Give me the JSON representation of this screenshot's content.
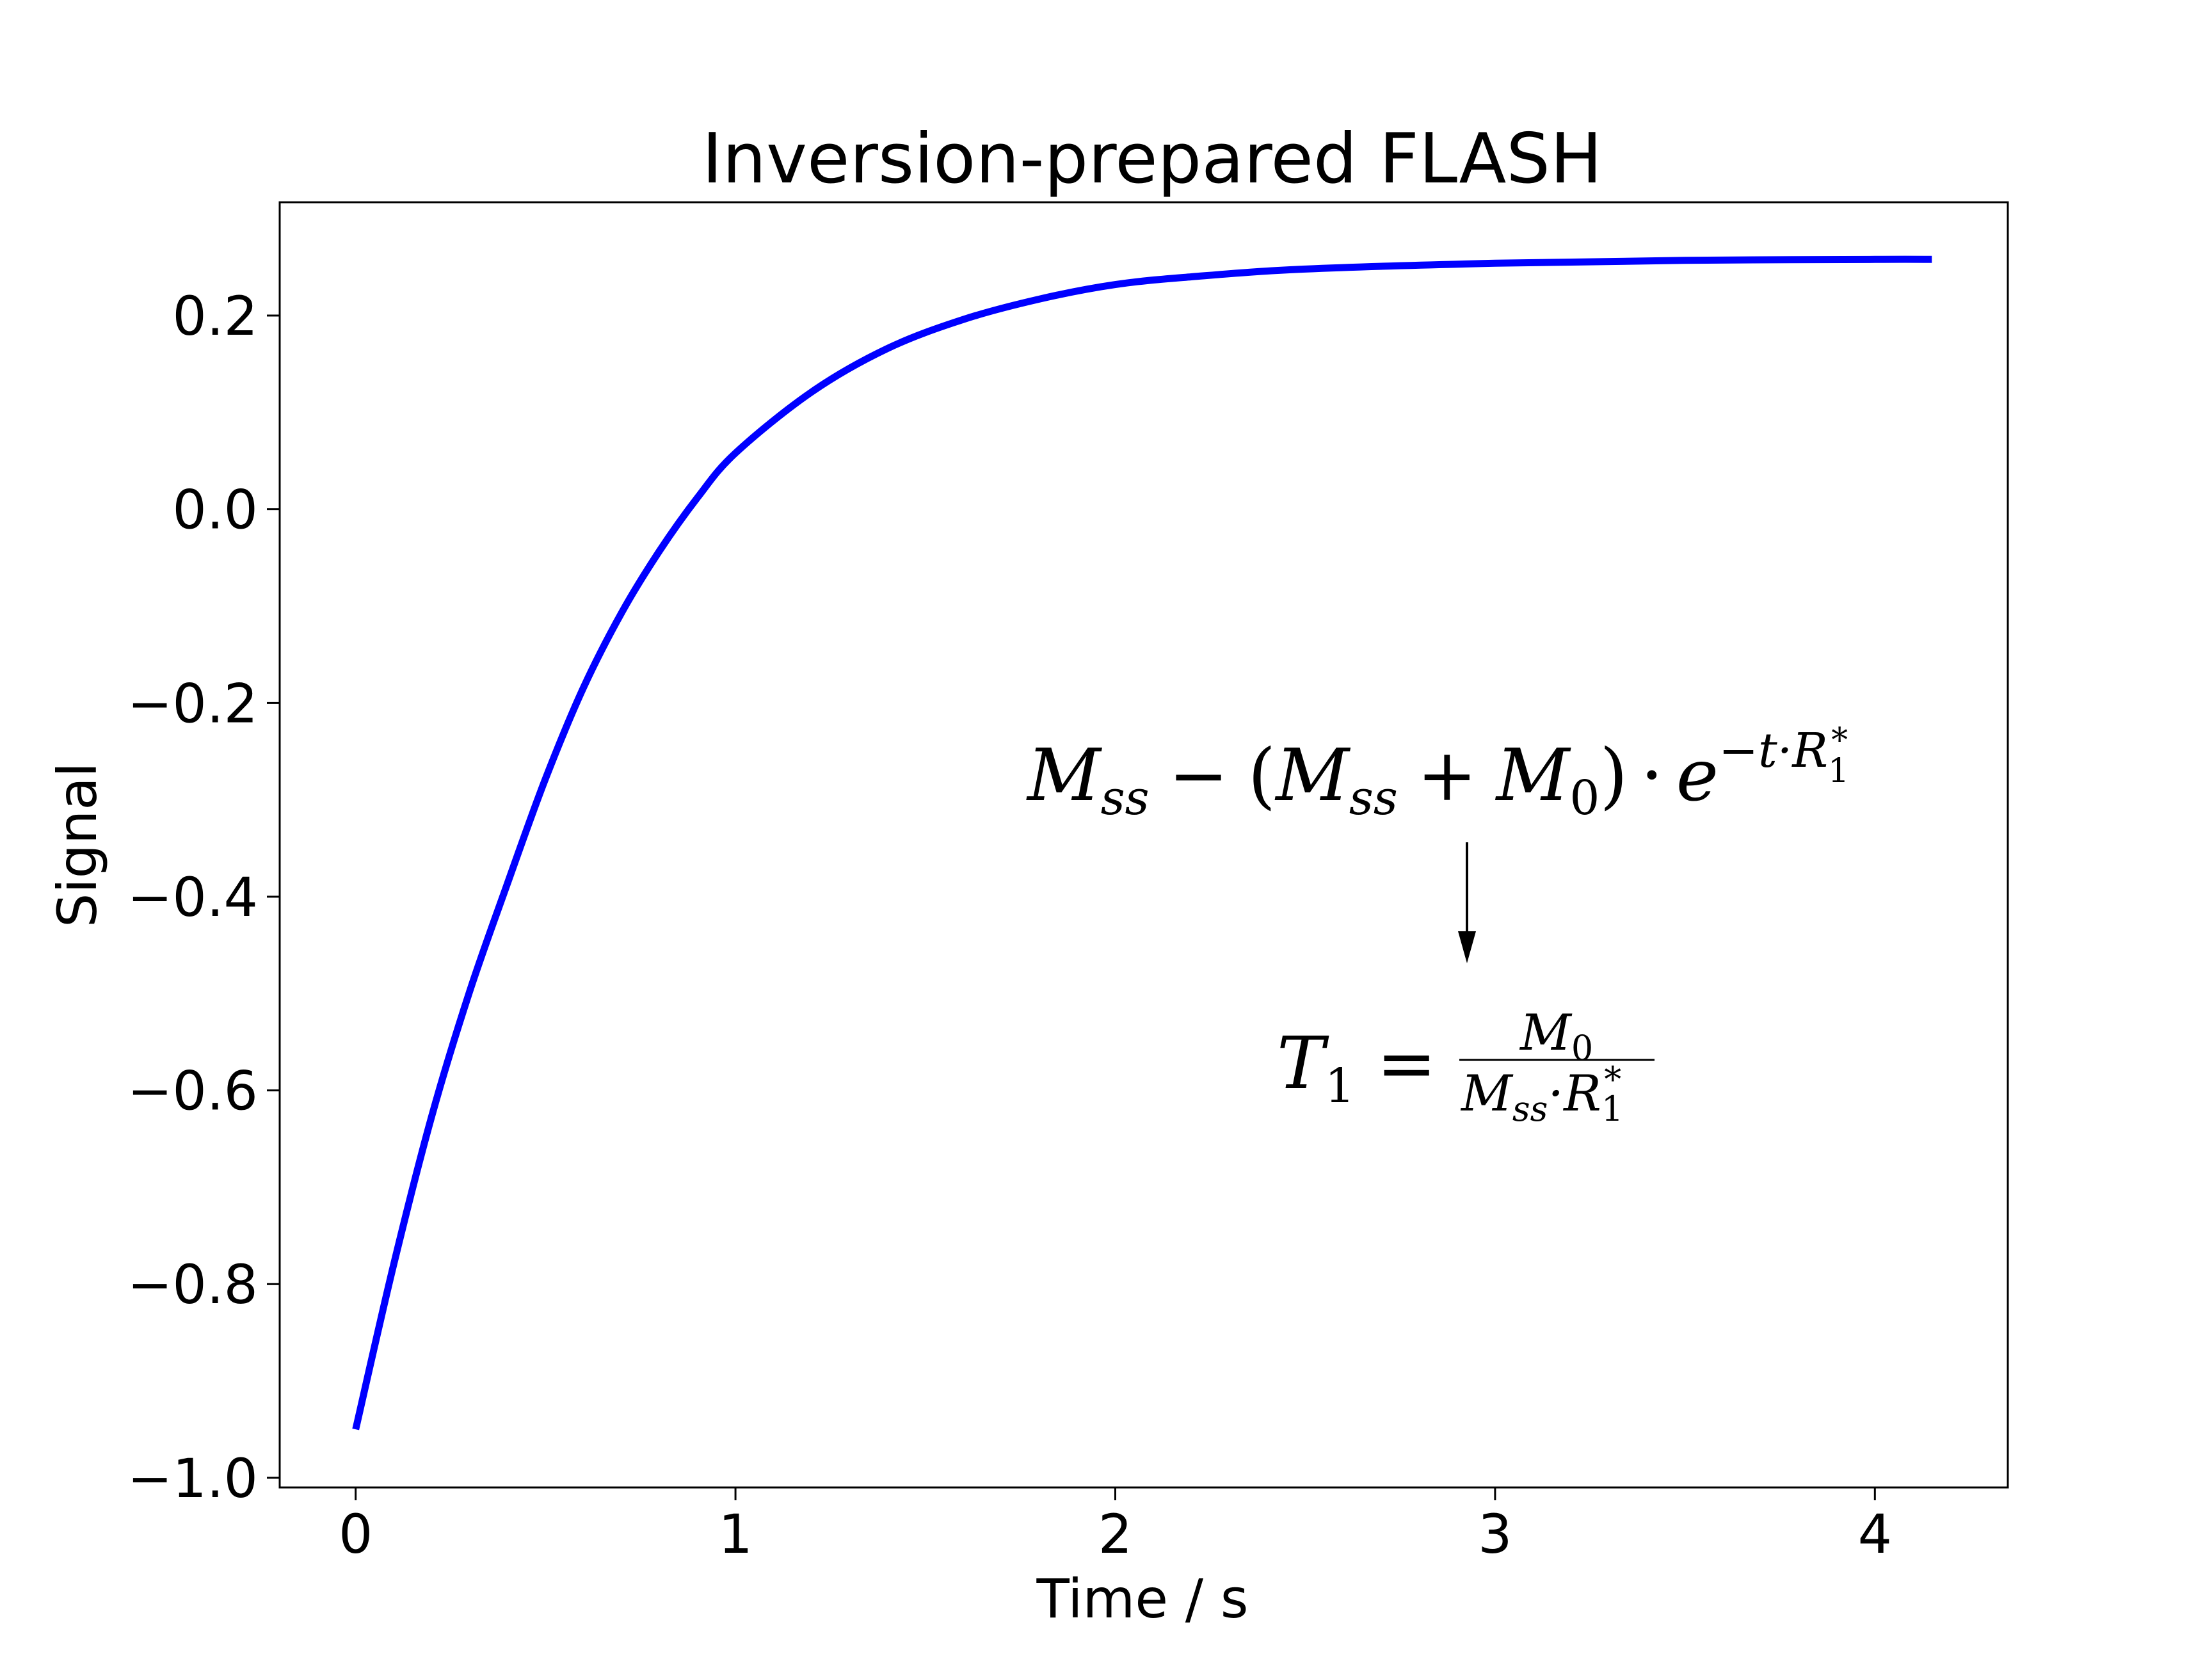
{
  "chart_data": {
    "type": "line",
    "title": "Inversion-prepared FLASH",
    "xlabel": "Time / s",
    "ylabel": "Signal",
    "xlim": [
      -0.2,
      4.35
    ],
    "ylim": [
      -1.01,
      0.317
    ],
    "xticks": [
      0,
      1,
      2,
      3,
      4
    ],
    "xtick_labels": [
      "0",
      "1",
      "2",
      "3",
      "4"
    ],
    "yticks": [
      -1.0,
      -0.8,
      -0.6,
      -0.4,
      -0.2,
      0.0,
      0.2
    ],
    "ytick_labels": [
      "−1.0",
      "−0.8",
      "−0.6",
      "−0.4",
      "−0.2",
      "0.0",
      "0.2"
    ],
    "grid": false,
    "series": [
      {
        "color": "#0000ff",
        "x": [
          0,
          0.1,
          0.2,
          0.3,
          0.4,
          0.5,
          0.6,
          0.7,
          0.8,
          0.9,
          1.0,
          1.2,
          1.4,
          1.6,
          1.8,
          2.0,
          2.2,
          2.5,
          3.0,
          3.5,
          4.0,
          4.15
        ],
        "y": [
          -0.95,
          -0.78,
          -0.627,
          -0.498,
          -0.386,
          -0.278,
          -0.184,
          -0.107,
          -0.043,
          0.012,
          0.058,
          0.121,
          0.166,
          0.196,
          0.217,
          0.232,
          0.24,
          0.248,
          0.254,
          0.257,
          0.258,
          0.258
        ]
      }
    ],
    "annotations": {
      "formula_main": {
        "m": "M",
        "ss1": "ss",
        "minus": "−",
        "lparen": "(",
        "m2": "M",
        "ss2": "ss",
        "plus": "+",
        "m0": "M",
        "zero": "0",
        "rparen": ")",
        "cdot": "·",
        "e": "e",
        "exp": "−t·R",
        "exp_sub": "1",
        "exp_sup": "*"
      },
      "arrow_color": "#000000",
      "formula_t1": {
        "t": "T",
        "t_sub": "1",
        "equals": "=",
        "num_m": "M",
        "num_sub": "0",
        "den_m": "M",
        "den_sub": "ss",
        "den_dot": "·R",
        "den_sub2": "1",
        "den_sup": "*"
      }
    }
  }
}
